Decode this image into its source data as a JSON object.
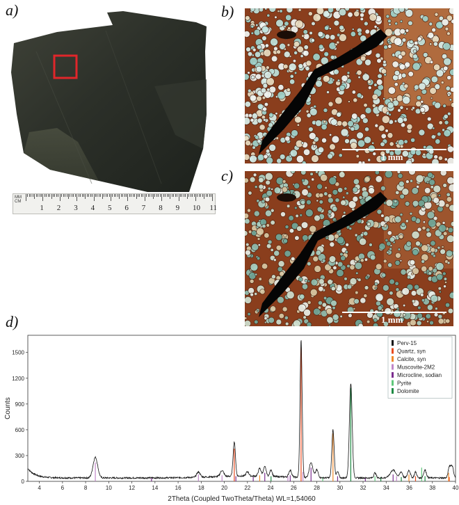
{
  "panels": {
    "a": "a)",
    "b": "b)",
    "c": "c)",
    "d": "d)"
  },
  "ruler": {
    "units": [
      "MM",
      "CM"
    ],
    "numbers": [
      "1",
      "2",
      "3",
      "4",
      "5",
      "6",
      "7",
      "8",
      "9",
      "10",
      "11"
    ]
  },
  "micrographs": {
    "b": {
      "scale_label": "1 mm"
    },
    "c": {
      "scale_label": "1 mm"
    }
  },
  "colors": {
    "sample_marker": "#e0262a",
    "perv15": "#111111",
    "quartz": "#e84b1f",
    "calcite": "#f0892a",
    "muscovite": "#c086c8",
    "microcline": "#7b2d8e",
    "pyrite": "#5fc77a",
    "dolomite": "#1e8a43"
  },
  "chart_data": {
    "type": "line",
    "xlabel": "2Theta (Coupled TwoTheta/Theta) WL=1,54060",
    "ylabel": "Counts",
    "xlim": [
      3,
      40
    ],
    "ylim": [
      0,
      1700
    ],
    "xticks": [
      4,
      6,
      8,
      10,
      12,
      14,
      16,
      18,
      20,
      22,
      24,
      26,
      28,
      30,
      32,
      34,
      36,
      38,
      40
    ],
    "yticks": [
      0,
      300,
      600,
      900,
      1200,
      1500
    ],
    "legend_position": "top-right",
    "series": [
      {
        "name": "Perv-15",
        "color": "#111111",
        "kind": "pattern"
      },
      {
        "name": "Quartz, syn",
        "color": "#e84b1f",
        "kind": "sticks",
        "peaks": [
          [
            20.86,
            380
          ],
          [
            26.64,
            1560
          ],
          [
            36.54,
            60
          ],
          [
            39.46,
            50
          ]
        ]
      },
      {
        "name": "Calcite, syn",
        "color": "#f0892a",
        "kind": "sticks",
        "peaks": [
          [
            23.06,
            70
          ],
          [
            29.4,
            560
          ],
          [
            35.97,
            80
          ],
          [
            39.4,
            100
          ]
        ]
      },
      {
        "name": "Muscovite-2M2",
        "color": "#c086c8",
        "kind": "sticks",
        "peaks": [
          [
            8.84,
            220
          ],
          [
            17.76,
            80
          ],
          [
            19.8,
            70
          ],
          [
            25.5,
            60
          ],
          [
            26.8,
            110
          ],
          [
            34.9,
            60
          ]
        ]
      },
      {
        "name": "Microcline, sodian",
        "color": "#7b2d8e",
        "kind": "sticks",
        "peaks": [
          [
            13.7,
            40
          ],
          [
            21.0,
            60
          ],
          [
            22.5,
            50
          ],
          [
            23.5,
            100
          ],
          [
            25.7,
            70
          ],
          [
            27.5,
            160
          ],
          [
            29.8,
            60
          ],
          [
            32.2,
            40
          ],
          [
            34.6,
            80
          ]
        ]
      },
      {
        "name": "Pyrite",
        "color": "#5fc77a",
        "kind": "sticks",
        "peaks": [
          [
            28.51,
            50
          ],
          [
            33.03,
            60
          ],
          [
            37.07,
            160
          ]
        ]
      },
      {
        "name": "Dolomite",
        "color": "#1e8a43",
        "kind": "sticks",
        "peaks": [
          [
            24.04,
            60
          ],
          [
            30.94,
            1090
          ],
          [
            33.54,
            50
          ],
          [
            35.31,
            50
          ],
          [
            37.36,
            60
          ]
        ]
      }
    ],
    "pattern_peaks": [
      [
        8.84,
        240,
        0.2
      ],
      [
        17.76,
        60,
        0.15
      ],
      [
        19.8,
        70,
        0.15
      ],
      [
        20.86,
        400,
        0.1
      ],
      [
        22.0,
        50,
        0.12
      ],
      [
        23.06,
        90,
        0.12
      ],
      [
        23.5,
        110,
        0.12
      ],
      [
        24.04,
        80,
        0.1
      ],
      [
        25.7,
        80,
        0.12
      ],
      [
        26.64,
        1600,
        0.09
      ],
      [
        27.5,
        180,
        0.15
      ],
      [
        28.0,
        90,
        0.12
      ],
      [
        29.4,
        560,
        0.1
      ],
      [
        29.8,
        70,
        0.1
      ],
      [
        30.94,
        1100,
        0.12
      ],
      [
        33.03,
        60,
        0.1
      ],
      [
        34.6,
        90,
        0.25
      ],
      [
        35.3,
        70,
        0.12
      ],
      [
        35.97,
        90,
        0.12
      ],
      [
        36.54,
        70,
        0.1
      ],
      [
        37.36,
        90,
        0.12
      ],
      [
        39.46,
        120,
        0.1
      ],
      [
        39.7,
        140,
        0.12
      ]
    ]
  }
}
